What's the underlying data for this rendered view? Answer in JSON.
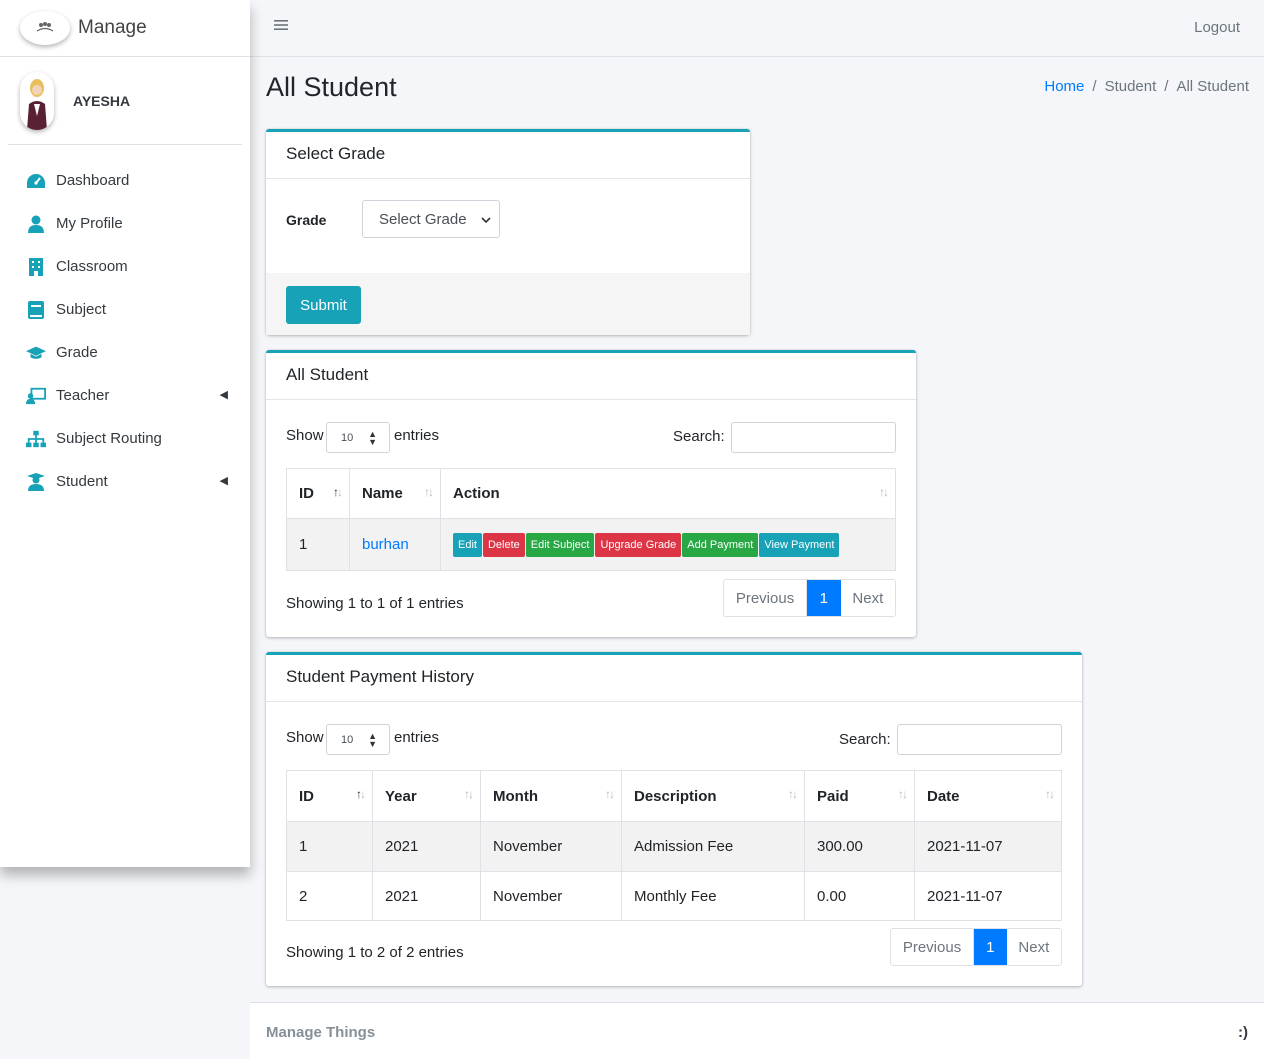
{
  "brand": {
    "name": "Manage"
  },
  "user": {
    "name": "AYESHA"
  },
  "sidebar": {
    "items": [
      {
        "label": "Dashboard",
        "icon": "tachometer-icon"
      },
      {
        "label": "My Profile",
        "icon": "user-icon"
      },
      {
        "label": "Classroom",
        "icon": "building-icon"
      },
      {
        "label": "Subject",
        "icon": "book-icon"
      },
      {
        "label": "Grade",
        "icon": "graduation-cap-icon"
      },
      {
        "label": "Teacher",
        "icon": "chalkboard-teacher-icon",
        "has_submenu": true
      },
      {
        "label": "Subject Routing",
        "icon": "sitemap-icon"
      },
      {
        "label": "Student",
        "icon": "user-graduate-icon",
        "has_submenu": true
      }
    ]
  },
  "topbar": {
    "logout": "Logout"
  },
  "page": {
    "title": "All Student"
  },
  "breadcrumb": {
    "home": "Home",
    "sep": "/",
    "section": "Student",
    "current": "All Student"
  },
  "select_grade": {
    "title": "Select Grade",
    "label": "Grade",
    "selected": "Select Grade",
    "submit": "Submit"
  },
  "all_student": {
    "title": "All Student",
    "show": "Show",
    "entries_value": "10",
    "entries": "entries",
    "search_label": "Search:",
    "columns": [
      "ID",
      "Name",
      "Action"
    ],
    "rows": [
      {
        "id": "1",
        "name": "burhan"
      }
    ],
    "actions": [
      "Edit",
      "Delete",
      "Edit Subject",
      "Upgrade Grade",
      "Add Payment",
      "View Payment"
    ],
    "info": "Showing 1 to 1 of 1 entries",
    "pager": {
      "prev": "Previous",
      "page": "1",
      "next": "Next"
    }
  },
  "payment_history": {
    "title": "Student Payment History",
    "show": "Show",
    "entries_value": "10",
    "entries": "entries",
    "search_label": "Search:",
    "columns": [
      "ID",
      "Year",
      "Month",
      "Description",
      "Paid",
      "Date"
    ],
    "rows": [
      [
        "1",
        "2021",
        "November",
        "Admission Fee",
        "300.00",
        "2021-11-07"
      ],
      [
        "2",
        "2021",
        "November",
        "Monthly Fee",
        "0.00",
        "2021-11-07"
      ]
    ],
    "info": "Showing 1 to 2 of 2 entries",
    "pager": {
      "prev": "Previous",
      "page": "1",
      "next": "Next"
    }
  },
  "footer": {
    "left": "Manage Things",
    "right": ":)"
  },
  "colors": {
    "accent": "#17a2b8",
    "primary": "#007bff",
    "danger": "#dc3545",
    "success": "#28a745"
  }
}
